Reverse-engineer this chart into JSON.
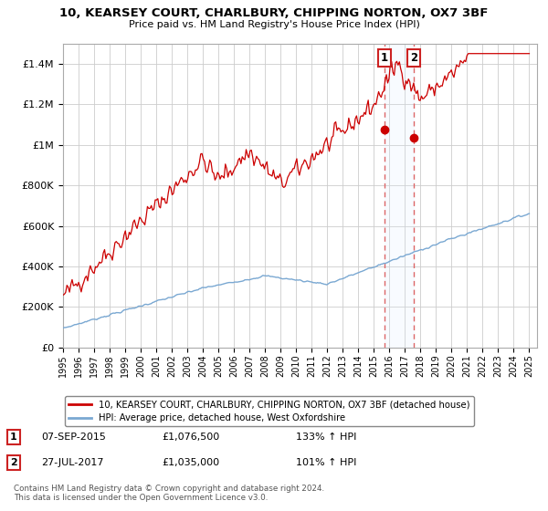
{
  "title": "10, KEARSEY COURT, CHARLBURY, CHIPPING NORTON, OX7 3BF",
  "subtitle": "Price paid vs. HM Land Registry's House Price Index (HPI)",
  "hpi_label": "HPI: Average price, detached house, West Oxfordshire",
  "prop_label": "10, KEARSEY COURT, CHARLBURY, CHIPPING NORTON, OX7 3BF (detached house)",
  "transaction1_date": "07-SEP-2015",
  "transaction1_price": "£1,076,500",
  "transaction1_hpi": "133% ↑ HPI",
  "transaction2_date": "27-JUL-2017",
  "transaction2_price": "£1,035,000",
  "transaction2_hpi": "101% ↑ HPI",
  "transaction1_year": 2015.68,
  "transaction1_value": 1076500,
  "transaction2_year": 2017.57,
  "transaction2_value": 1035000,
  "ylim_max": 1500000,
  "xlim_start": 1995.0,
  "xlim_end": 2025.5,
  "prop_color": "#cc0000",
  "hpi_color": "#7aa8d2",
  "vline_color": "#dd6666",
  "span_color": "#ddeeff",
  "background_color": "#ffffff",
  "grid_color": "#cccccc",
  "footnote": "Contains HM Land Registry data © Crown copyright and database right 2024.\nThis data is licensed under the Open Government Licence v3.0."
}
